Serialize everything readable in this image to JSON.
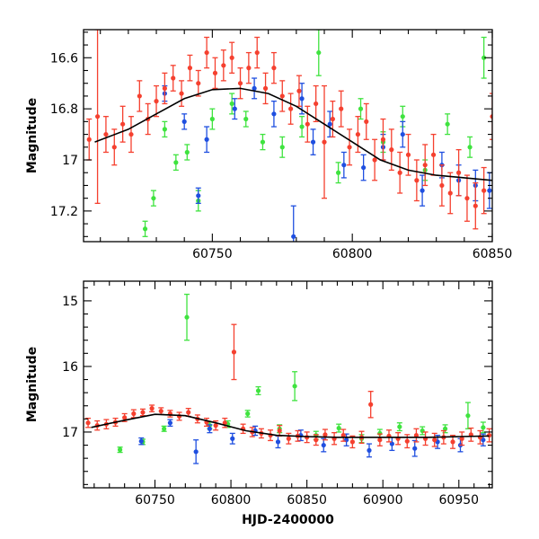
{
  "chart_data": [
    {
      "type": "scatter",
      "panel": "top",
      "xlabel": "",
      "ylabel": "Magnitude",
      "xlim": [
        60704,
        60850
      ],
      "ylim": [
        17.32,
        16.49
      ],
      "y_inverted": true,
      "x_ticks": [
        60750,
        60800,
        60850
      ],
      "x_tick_labels": [
        "60750",
        "60800",
        "60850"
      ],
      "y_ticks": [
        16.6,
        16.8,
        17.0,
        17.2
      ],
      "y_tick_labels": [
        "16.6",
        "16.8",
        "17",
        "17.2"
      ],
      "model_curve": {
        "name": "model",
        "color": "#000000",
        "x": [
          60708,
          60720,
          60730,
          60740,
          60750,
          60760,
          60770,
          60780,
          60790,
          60800,
          60810,
          60820,
          60830,
          60840,
          60850
        ],
        "y": [
          16.93,
          16.88,
          16.82,
          16.76,
          16.725,
          16.72,
          16.74,
          16.79,
          16.86,
          16.93,
          17.0,
          17.04,
          17.06,
          17.07,
          17.08
        ]
      },
      "series": [
        {
          "name": "green",
          "color": "#3fe33f",
          "x": [
            60726,
            60729,
            60733,
            60737,
            60741,
            60745,
            60750,
            60757,
            60762,
            60768,
            60775,
            60782,
            60788,
            60795,
            60803,
            60811,
            60818,
            60826,
            60834,
            60842,
            60847
          ],
          "y": [
            17.27,
            17.15,
            16.88,
            17.01,
            16.97,
            17.16,
            16.84,
            16.78,
            16.84,
            16.93,
            16.95,
            16.87,
            16.58,
            17.05,
            16.8,
            16.93,
            16.83,
            17.04,
            16.86,
            16.95,
            16.6
          ],
          "err": [
            0.03,
            0.03,
            0.03,
            0.03,
            0.03,
            0.04,
            0.04,
            0.04,
            0.03,
            0.03,
            0.04,
            0.04,
            0.09,
            0.04,
            0.04,
            0.04,
            0.04,
            0.04,
            0.04,
            0.04,
            0.08
          ]
        },
        {
          "name": "blue",
          "color": "#1f4fe0",
          "x": [
            60733,
            60740,
            60745,
            60748,
            60758,
            60765,
            60772,
            60779,
            60782,
            60786,
            60792,
            60797,
            60804,
            60811,
            60818,
            60825,
            60832,
            60838,
            60844,
            60849
          ],
          "y": [
            16.74,
            16.85,
            17.14,
            16.92,
            16.8,
            16.72,
            16.82,
            17.3,
            16.76,
            16.93,
            16.86,
            17.02,
            17.03,
            16.95,
            16.9,
            17.12,
            17.02,
            17.08,
            17.1,
            17.12
          ],
          "err": [
            0.03,
            0.03,
            0.03,
            0.05,
            0.04,
            0.04,
            0.05,
            0.12,
            0.06,
            0.05,
            0.05,
            0.05,
            0.05,
            0.05,
            0.05,
            0.06,
            0.05,
            0.06,
            0.06,
            0.07
          ]
        },
        {
          "name": "red",
          "color": "#f5402f",
          "x": [
            60706,
            60709,
            60712,
            60715,
            60718,
            60721,
            60724,
            60727,
            60730,
            60733,
            60736,
            60739,
            60742,
            60745,
            60748,
            60751,
            60754,
            60757,
            60760,
            60763,
            60766,
            60769,
            60772,
            60775,
            60778,
            60781,
            60784,
            60787,
            60790,
            60793,
            60796,
            60799,
            60802,
            60805,
            60808,
            60811,
            60814,
            60817,
            60820,
            60823,
            60826,
            60829,
            60832,
            60835,
            60838,
            60841,
            60844,
            60847,
            60850
          ],
          "y": [
            16.92,
            16.83,
            16.9,
            16.95,
            16.86,
            16.9,
            16.75,
            16.84,
            16.77,
            16.72,
            16.68,
            16.74,
            16.64,
            16.7,
            16.58,
            16.66,
            16.63,
            16.6,
            16.7,
            16.64,
            16.58,
            16.72,
            16.64,
            16.75,
            16.8,
            16.73,
            16.86,
            16.78,
            16.93,
            16.84,
            16.8,
            16.95,
            16.9,
            16.85,
            17.0,
            16.92,
            16.96,
            17.05,
            16.98,
            17.08,
            17.02,
            16.98,
            17.1,
            17.13,
            17.05,
            17.15,
            17.18,
            17.12,
            16.83
          ],
          "err": [
            0.08,
            0.34,
            0.07,
            0.07,
            0.07,
            0.07,
            0.06,
            0.06,
            0.06,
            0.06,
            0.05,
            0.05,
            0.05,
            0.05,
            0.06,
            0.06,
            0.06,
            0.06,
            0.06,
            0.06,
            0.06,
            0.06,
            0.06,
            0.06,
            0.06,
            0.06,
            0.07,
            0.07,
            0.22,
            0.07,
            0.07,
            0.07,
            0.07,
            0.07,
            0.08,
            0.08,
            0.08,
            0.08,
            0.08,
            0.08,
            0.08,
            0.08,
            0.08,
            0.08,
            0.09,
            0.09,
            0.09,
            0.09,
            0.09
          ]
        }
      ]
    },
    {
      "type": "scatter",
      "panel": "bottom",
      "xlabel": "HJD-2400000",
      "ylabel": "Magnitude",
      "xlim": [
        60703,
        60972
      ],
      "ylim": [
        17.85,
        14.7
      ],
      "y_inverted": true,
      "x_ticks": [
        60750,
        60800,
        60850,
        60900,
        60950
      ],
      "x_tick_labels": [
        "60750",
        "60800",
        "60850",
        "60900",
        "60950"
      ],
      "y_ticks": [
        15,
        16,
        17
      ],
      "y_tick_labels": [
        "15",
        "16",
        "17"
      ],
      "model_curve": {
        "name": "model",
        "color": "#000000",
        "x": [
          60708,
          60730,
          60750,
          60770,
          60790,
          60810,
          60830,
          60850,
          60870,
          60890,
          60910,
          60930,
          60950,
          60970
        ],
        "y": [
          16.93,
          16.82,
          16.73,
          16.75,
          16.86,
          16.98,
          17.05,
          17.07,
          17.08,
          17.08,
          17.08,
          17.08,
          17.07,
          17.06
        ]
      },
      "series": [
        {
          "name": "green",
          "color": "#3fe33f",
          "x": [
            60727,
            60742,
            60756,
            60771,
            60786,
            60798,
            60811,
            60818,
            60832,
            60842,
            60856,
            60871,
            60886,
            60898,
            60911,
            60926,
            60941,
            60956,
            60966
          ],
          "y": [
            17.27,
            17.15,
            16.95,
            15.25,
            16.9,
            16.88,
            16.72,
            16.37,
            16.95,
            16.3,
            17.05,
            16.94,
            17.1,
            17.02,
            16.92,
            16.98,
            16.95,
            16.75,
            16.93
          ],
          "err": [
            0.04,
            0.04,
            0.04,
            0.35,
            0.05,
            0.05,
            0.05,
            0.06,
            0.06,
            0.22,
            0.06,
            0.06,
            0.06,
            0.06,
            0.06,
            0.06,
            0.06,
            0.2,
            0.08
          ]
        },
        {
          "name": "blue",
          "color": "#1f4fe0",
          "x": [
            60741,
            60760,
            60777,
            60786,
            60801,
            60816,
            60831,
            60846,
            60861,
            60876,
            60891,
            60906,
            60921,
            60936,
            60951,
            60966
          ],
          "y": [
            17.14,
            16.86,
            17.3,
            16.95,
            17.1,
            16.98,
            17.15,
            17.05,
            17.2,
            17.12,
            17.28,
            17.18,
            17.25,
            17.15,
            17.2,
            17.12
          ],
          "err": [
            0.05,
            0.05,
            0.18,
            0.06,
            0.08,
            0.07,
            0.09,
            0.08,
            0.1,
            0.09,
            0.1,
            0.1,
            0.12,
            0.1,
            0.1,
            0.09
          ]
        },
        {
          "name": "red",
          "color": "#f5402f",
          "x": [
            60706,
            60712,
            60718,
            60724,
            60730,
            60736,
            60742,
            60748,
            60754,
            60760,
            60766,
            60772,
            60778,
            60784,
            60790,
            60796,
            60802,
            60808,
            60814,
            60820,
            60826,
            60832,
            60838,
            60844,
            60850,
            60856,
            60862,
            60868,
            60874,
            60880,
            60886,
            60892,
            60898,
            60904,
            60910,
            60916,
            60922,
            60928,
            60934,
            60940,
            60946,
            60952,
            60958,
            60964,
            60970
          ],
          "y": [
            16.86,
            16.9,
            16.88,
            16.85,
            16.78,
            16.72,
            16.7,
            16.64,
            16.68,
            16.72,
            16.76,
            16.7,
            16.8,
            16.85,
            16.9,
            16.86,
            15.78,
            16.95,
            17.0,
            17.02,
            17.05,
            16.98,
            17.1,
            17.06,
            17.08,
            17.12,
            17.04,
            17.1,
            17.05,
            17.15,
            17.08,
            16.58,
            17.12,
            17.06,
            17.1,
            17.14,
            17.05,
            17.1,
            17.12,
            17.08,
            17.15,
            17.1,
            17.04,
            17.08,
            17.05
          ],
          "err": [
            0.07,
            0.07,
            0.07,
            0.06,
            0.06,
            0.06,
            0.05,
            0.05,
            0.05,
            0.05,
            0.06,
            0.06,
            0.06,
            0.06,
            0.07,
            0.07,
            0.42,
            0.07,
            0.07,
            0.07,
            0.08,
            0.08,
            0.08,
            0.08,
            0.08,
            0.08,
            0.08,
            0.09,
            0.09,
            0.09,
            0.09,
            0.2,
            0.09,
            0.09,
            0.09,
            0.1,
            0.1,
            0.1,
            0.1,
            0.1,
            0.1,
            0.1,
            0.1,
            0.1,
            0.1
          ]
        }
      ]
    }
  ]
}
